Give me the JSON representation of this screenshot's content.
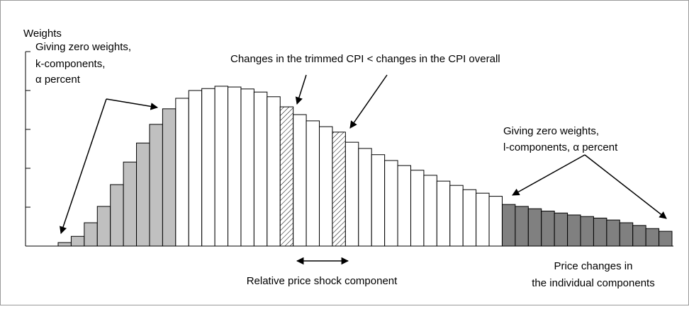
{
  "chart_data": {
    "type": "bar",
    "y_label": "Weights",
    "annotations": {
      "left": [
        "Giving zero weights,",
        "k-components,",
        "α percent"
      ],
      "top": "Changes in the trimmed CPI < changes in the CPI overall",
      "right": [
        "Giving zero weights,",
        "l-components, α percent"
      ],
      "shock": "Relative price shock component",
      "x_label": [
        "Price changes in",
        "the individual components"
      ]
    },
    "values": [
      0.09,
      0.25,
      0.6,
      1.02,
      1.58,
      2.16,
      2.65,
      3.13,
      3.53,
      3.8,
      4.0,
      4.05,
      4.11,
      4.09,
      4.04,
      3.96,
      3.84,
      3.58,
      3.38,
      3.22,
      3.07,
      2.93,
      2.67,
      2.51,
      2.35,
      2.2,
      2.07,
      1.95,
      1.82,
      1.67,
      1.56,
      1.45,
      1.36,
      1.28,
      1.07,
      1.02,
      0.96,
      0.9,
      0.85,
      0.8,
      0.76,
      0.72,
      0.67,
      0.6,
      0.53,
      0.45,
      0.38
    ],
    "fills": [
      "#c0c0c0",
      "#c0c0c0",
      "#c0c0c0",
      "#c0c0c0",
      "#c0c0c0",
      "#c0c0c0",
      "#c0c0c0",
      "#c0c0c0",
      "#c0c0c0",
      "#ffffff",
      "#ffffff",
      "#ffffff",
      "#ffffff",
      "#ffffff",
      "#ffffff",
      "#ffffff",
      "#ffffff",
      "hatched",
      "#ffffff",
      "#ffffff",
      "#ffffff",
      "hatched",
      "#ffffff",
      "#ffffff",
      "#ffffff",
      "#ffffff",
      "#ffffff",
      "#ffffff",
      "#ffffff",
      "#ffffff",
      "#ffffff",
      "#ffffff",
      "#ffffff",
      "#ffffff",
      "#808080",
      "#808080",
      "#808080",
      "#808080",
      "#808080",
      "#808080",
      "#808080",
      "#808080",
      "#808080",
      "#808080",
      "#808080",
      "#808080",
      "#808080"
    ],
    "ylim": [
      0,
      5
    ],
    "yticks": [
      0,
      1,
      2,
      3,
      4,
      5
    ]
  }
}
